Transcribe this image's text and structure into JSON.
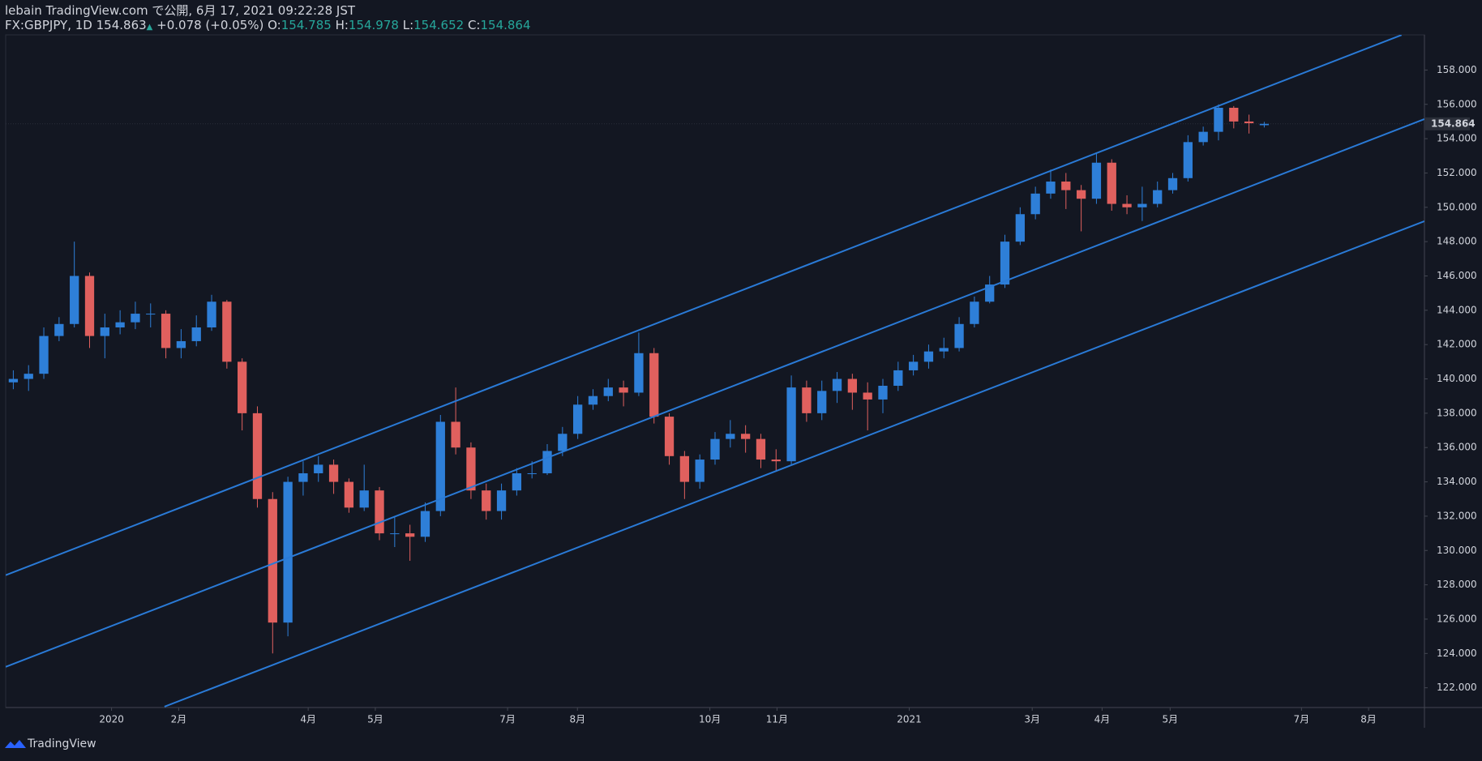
{
  "header": {
    "published": "lebain TradingView.com で公開, 6月 17, 2021 09:22:28 JST",
    "symbol": "FX:GBPJPY, 1D",
    "price": 154.863,
    "arrow": "▲",
    "change": "+0.078 (+0.05%)",
    "o_label": "O:",
    "o": 154.785,
    "h_label": "H:",
    "h": 154.978,
    "l_label": "L:",
    "l": 154.652,
    "c_label": "C:",
    "c": 154.864
  },
  "footer": {
    "brand": "TradingView"
  },
  "chart_data": {
    "type": "candlestick",
    "up_color": "#2e7fd8",
    "down_color": "#e0605e",
    "line_color": "#2a7ad6",
    "grid": false,
    "open": [
      139.8,
      140.0,
      140.3,
      142.5,
      143.2,
      146.0,
      142.5,
      143.0,
      143.3,
      143.8,
      143.8,
      141.8,
      142.2,
      143.0,
      144.5,
      141.0,
      138.0,
      133.0,
      125.8,
      134.0,
      134.5,
      135.0,
      134.0,
      132.5,
      133.5,
      131.0,
      131.0,
      130.8,
      132.3,
      137.5,
      136.0,
      133.5,
      132.3,
      133.5,
      134.5,
      134.5,
      135.8,
      136.8,
      138.5,
      139.0,
      139.5,
      139.2,
      141.5,
      137.8,
      135.5,
      134.0,
      135.3,
      136.5,
      136.8,
      136.5,
      135.3,
      135.2,
      139.5,
      138.0,
      139.3,
      140.0,
      139.2,
      138.8,
      139.6,
      140.5,
      141.0,
      141.6,
      141.8,
      143.2,
      144.5,
      145.5,
      148.0,
      149.6,
      150.8,
      151.5,
      151.0,
      150.5,
      152.6,
      150.2,
      150.0,
      150.2,
      151.0,
      151.7,
      153.8,
      154.4,
      155.8,
      155.0,
      154.785
    ],
    "high": [
      140.5,
      140.8,
      143.0,
      143.6,
      148.0,
      146.2,
      143.8,
      144.0,
      144.5,
      144.4,
      144.0,
      142.9,
      143.7,
      144.9,
      144.6,
      141.2,
      138.4,
      133.4,
      134.3,
      135.2,
      135.5,
      135.3,
      134.2,
      135.0,
      133.7,
      132.0,
      131.5,
      132.8,
      137.9,
      139.5,
      136.3,
      133.9,
      133.9,
      134.8,
      135.2,
      136.2,
      137.2,
      139.0,
      139.4,
      140.0,
      139.9,
      142.7,
      141.8,
      138.0,
      135.8,
      135.6,
      136.9,
      137.6,
      137.3,
      136.8,
      135.9,
      140.2,
      139.9,
      139.9,
      140.4,
      140.3,
      139.8,
      140.0,
      141.0,
      141.4,
      142.0,
      142.4,
      143.6,
      144.8,
      146.0,
      148.4,
      150.0,
      151.2,
      152.2,
      152.0,
      151.3,
      153.2,
      152.8,
      150.7,
      151.2,
      151.5,
      152.0,
      154.2,
      154.7,
      156.0,
      155.9,
      155.4,
      154.978
    ],
    "low": [
      139.4,
      139.3,
      140.0,
      142.2,
      143.0,
      141.8,
      141.2,
      142.6,
      142.9,
      143.0,
      141.2,
      141.2,
      141.9,
      142.8,
      140.6,
      137.0,
      132.5,
      124.0,
      125.0,
      133.2,
      134.0,
      133.3,
      132.2,
      132.3,
      130.6,
      130.2,
      129.4,
      130.5,
      132.0,
      135.6,
      133.0,
      131.8,
      131.8,
      133.2,
      134.2,
      134.4,
      135.5,
      136.5,
      138.2,
      138.7,
      138.4,
      139.0,
      137.4,
      135.0,
      133.0,
      133.6,
      135.0,
      136.0,
      135.7,
      134.8,
      134.6,
      135.0,
      137.5,
      137.6,
      138.6,
      138.2,
      137.0,
      138.0,
      139.3,
      140.2,
      140.6,
      141.2,
      141.6,
      143.0,
      144.4,
      145.3,
      147.8,
      149.3,
      150.5,
      149.9,
      148.6,
      150.2,
      149.8,
      149.6,
      149.2,
      150.0,
      150.8,
      151.5,
      153.6,
      153.9,
      154.6,
      154.3,
      154.652
    ],
    "close": [
      140.0,
      140.3,
      142.5,
      143.2,
      146.0,
      142.5,
      143.0,
      143.3,
      143.8,
      143.8,
      141.8,
      142.2,
      143.0,
      144.5,
      141.0,
      138.0,
      133.0,
      125.8,
      134.0,
      134.5,
      135.0,
      134.0,
      132.5,
      133.5,
      131.0,
      131.0,
      130.8,
      132.3,
      137.5,
      136.0,
      133.5,
      132.3,
      133.5,
      134.5,
      134.5,
      135.8,
      136.8,
      138.5,
      139.0,
      139.5,
      139.2,
      141.5,
      137.8,
      135.5,
      134.0,
      135.3,
      136.5,
      136.8,
      136.5,
      135.3,
      135.2,
      139.5,
      138.0,
      139.3,
      140.0,
      139.2,
      138.8,
      139.6,
      140.5,
      141.0,
      141.6,
      141.8,
      143.2,
      144.5,
      145.5,
      148.0,
      149.6,
      150.8,
      151.5,
      151.0,
      150.5,
      152.6,
      150.2,
      150.0,
      150.2,
      151.0,
      151.7,
      153.8,
      154.4,
      155.8,
      155.0,
      154.9,
      154.864
    ],
    "lines": [
      {
        "x": [
          -0.5,
          91.0
        ],
        "y": [
          128.56,
          160.04
        ]
      },
      {
        "x": [
          -0.5,
          92.5
        ],
        "y": [
          123.22,
          155.14
        ]
      },
      {
        "x": [
          9.91,
          92.5
        ],
        "y": [
          120.9,
          149.19
        ]
      }
    ],
    "last_price": 154.864,
    "xlim": [
      -0.5,
      92.5
    ],
    "ylim": [
      120.85,
      160.05
    ],
    "xticks": [
      {
        "value": 6.44,
        "label": "2020"
      },
      {
        "value": 10.84,
        "label": "2月"
      },
      {
        "value": 19.33,
        "label": "4月"
      },
      {
        "value": 23.73,
        "label": "5月"
      },
      {
        "value": 32.4,
        "label": "7月"
      },
      {
        "value": 36.98,
        "label": "8月"
      },
      {
        "value": 45.66,
        "label": "10月"
      },
      {
        "value": 50.06,
        "label": "11月"
      },
      {
        "value": 58.73,
        "label": "2021"
      },
      {
        "value": 66.79,
        "label": "3月"
      },
      {
        "value": 71.37,
        "label": "4月"
      },
      {
        "value": 75.83,
        "label": "5月"
      },
      {
        "value": 84.44,
        "label": "7月"
      },
      {
        "value": 88.84,
        "label": "8月"
      }
    ],
    "yticks": [
      {
        "value": 122,
        "label": "122.000"
      },
      {
        "value": 124,
        "label": "124.000"
      },
      {
        "value": 126,
        "label": "126.000"
      },
      {
        "value": 128,
        "label": "128.000"
      },
      {
        "value": 130,
        "label": "130.000"
      },
      {
        "value": 132,
        "label": "132.000"
      },
      {
        "value": 134,
        "label": "134.000"
      },
      {
        "value": 136,
        "label": "136.000"
      },
      {
        "value": 138,
        "label": "138.000"
      },
      {
        "value": 140,
        "label": "140.000"
      },
      {
        "value": 142,
        "label": "142.000"
      },
      {
        "value": 144,
        "label": "144.000"
      },
      {
        "value": 146,
        "label": "146.000"
      },
      {
        "value": 148,
        "label": "148.000"
      },
      {
        "value": 150,
        "label": "150.000"
      },
      {
        "value": 152,
        "label": "152.000"
      },
      {
        "value": 154,
        "label": "154.000"
      },
      {
        "value": 156,
        "label": "156.000"
      },
      {
        "value": 158,
        "label": "158.000"
      }
    ]
  }
}
